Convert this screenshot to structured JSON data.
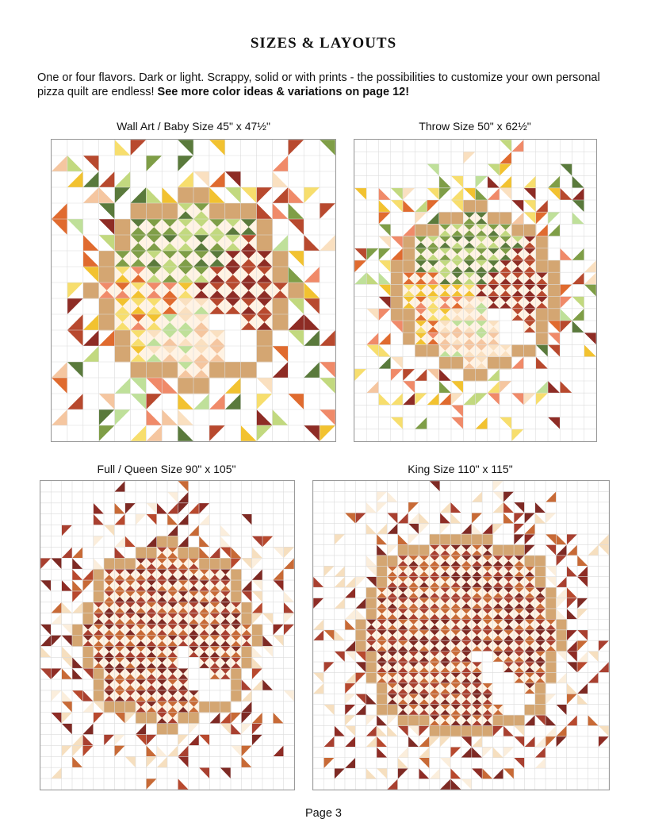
{
  "page": {
    "title": "SIZES & LAYOUTS",
    "intro_plain": "One or four flavors. Dark or light. Scrappy, solid or with prints - the possibilities to customize your own personal pizza quilt are endless! ",
    "intro_bold": "See more color ideas & variations on page 12!",
    "footer": "Page 3"
  },
  "quilts": [
    {
      "caption": "Wall Art / Baby Size 45\" x 47½\"",
      "cols": 18,
      "rows": 19,
      "scheme": "four-flavor"
    },
    {
      "caption": "Throw Size 50\" x 62½\"",
      "cols": 20,
      "rows": 25,
      "scheme": "four-flavor"
    },
    {
      "caption": "Full / Queen Size 90\" x 105\"",
      "cols": 24,
      "rows": 28,
      "scheme": "single-flavor"
    },
    {
      "caption": "King Size 110\" x 115\"",
      "cols": 28,
      "rows": 29,
      "scheme": "single-flavor"
    }
  ],
  "colors": {
    "crust": "#d4a672",
    "grid": "#dcdcdc",
    "green": [
      "#5a7a3c",
      "#7f9e47",
      "#c2d97f"
    ],
    "yellow": [
      "#f2c230",
      "#f7de6d"
    ],
    "orange": [
      "#e06b2f",
      "#f08a69"
    ],
    "red": [
      "#8e2c25",
      "#b8492e"
    ],
    "light": [
      "#bfe09a",
      "#f5c6a0",
      "#fae0c0"
    ],
    "dark": [
      "#7e2a24",
      "#a94030",
      "#c86a36"
    ],
    "cream": [
      "#f6dfbf",
      "#fbeedc"
    ]
  }
}
